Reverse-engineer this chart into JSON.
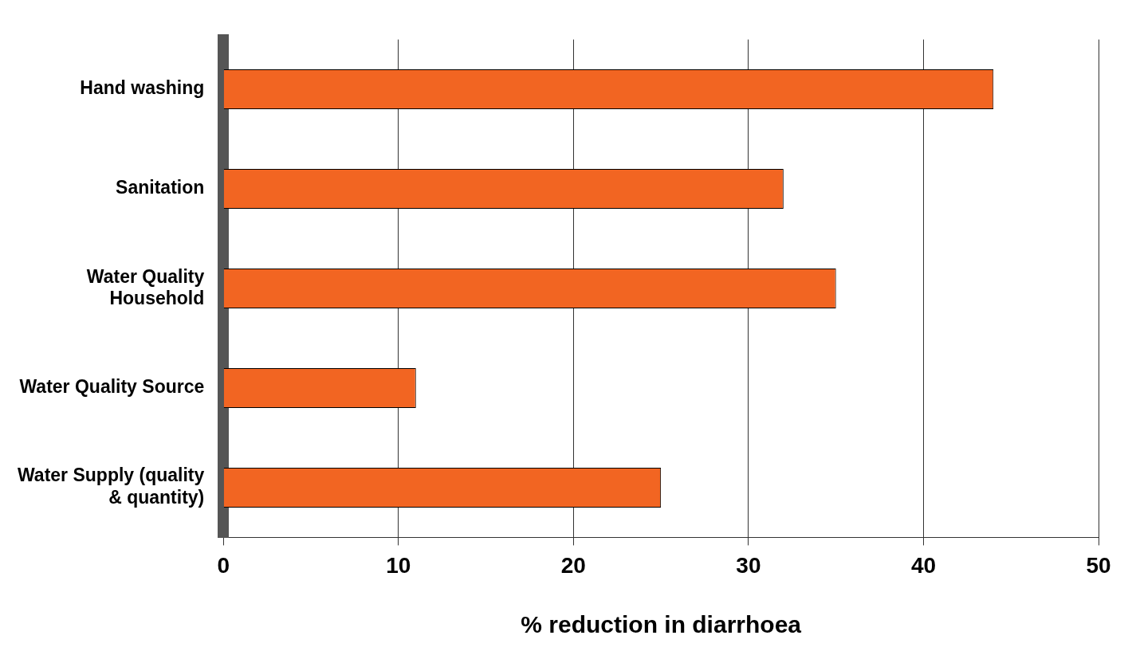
{
  "chart_data": {
    "type": "bar",
    "orientation": "horizontal",
    "xlabel": "% reduction in diarrhoea",
    "categories": [
      "Hand washing",
      "Sanitation",
      "Water Quality\nHousehold",
      "Water Quality Source",
      "Water Supply (quality\n& quantity)"
    ],
    "values": [
      44,
      32,
      35,
      11,
      25
    ],
    "color": "#f26522",
    "xlim": [
      0,
      50
    ],
    "xticks": [
      0,
      10,
      20,
      30,
      40,
      50
    ],
    "grid": "x",
    "legend": false
  }
}
